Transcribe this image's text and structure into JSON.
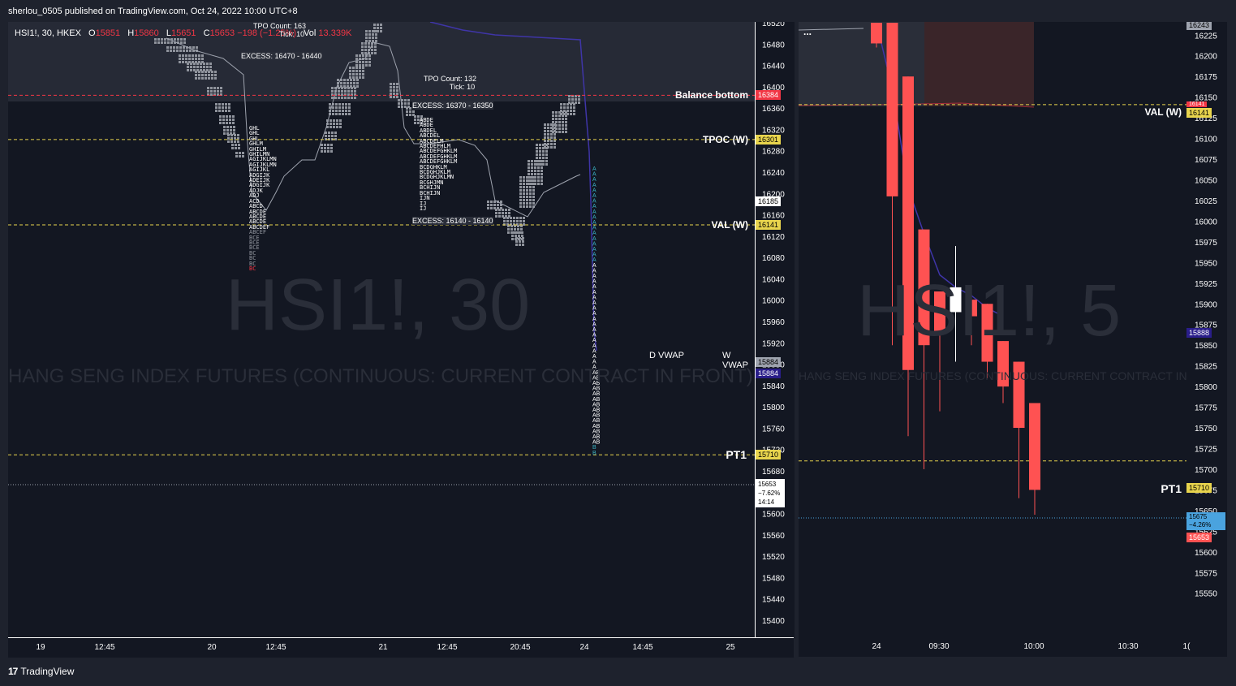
{
  "header": {
    "publish_line": "sherlou_0505 published on TradingView.com, Oct 24, 2022 10:00 UTC+8"
  },
  "branding": {
    "logo_text": "TradingView"
  },
  "colors": {
    "bg": "#131722",
    "up": "#ffffff",
    "down": "#ff5252",
    "vwap": "#3d2f9e",
    "dashed_yellow": "#e8d44d",
    "dashed_red": "#f23645",
    "accent_blue": "#2a1e8a"
  },
  "left_pane": {
    "symbol_line": "HSI1!, 30, HKEX",
    "ohlc": {
      "o_label": "O",
      "o": "15851",
      "h_label": "H",
      "h": "15860",
      "l_label": "L",
      "l": "15651",
      "c_label": "C",
      "c": "15653",
      "change": "−198 (−1.25%)",
      "vol_label": "Vol",
      "vol": "13.339K"
    },
    "watermark": "HSI1!, 30",
    "watermark_sub": "HANG SENG INDEX FUTURES (CONTINUOUS: CURRENT CONTRACT IN FRONT)",
    "tpo_info": [
      {
        "count": "TPO Count: 163",
        "tick": "Tick: 10"
      },
      {
        "count": "TPO Count: 132",
        "tick": "Tick: 10"
      }
    ],
    "excess_labels": [
      "EXCESS: 16470 - 16440",
      "EXCESS: 16370 - 16350",
      "EXCESS: 16140 - 16140"
    ],
    "level_labels": [
      {
        "name": "Balance bottom",
        "value": 16384,
        "tag": "16384"
      },
      {
        "name": "TPOC (W)",
        "value": 16301,
        "tag": "16301"
      },
      {
        "name": "VAL (W)",
        "value": 16141,
        "tag": "16141"
      },
      {
        "name": "PT1",
        "value": 15710,
        "tag": "15710"
      }
    ],
    "vwap_labels": {
      "d": "D VWAP",
      "w": "W VWAP"
    },
    "price_tags": {
      "p16185": "16185",
      "p15884a": "15884",
      "p15884b": "15884",
      "last": "15653",
      "last_change": "−7.62%",
      "countdown": "14:14"
    },
    "yaxis_ticks": [
      "16520",
      "16480",
      "16440",
      "16400",
      "16360",
      "16320",
      "16280",
      "16240",
      "16200",
      "16160",
      "16120",
      "16080",
      "16040",
      "16000",
      "15960",
      "15920",
      "15880",
      "15840",
      "15800",
      "15760",
      "15720",
      "15680",
      "15640",
      "15600",
      "15560",
      "15520",
      "15480",
      "15440",
      "15400"
    ],
    "xaxis_ticks": [
      "19",
      "12:45",
      "20",
      "12:45",
      "21",
      "12:45",
      "20:45",
      "24",
      "14:45",
      "25"
    ],
    "tpo_letters_sample": [
      "GHL",
      "GHL",
      "GHL",
      "GHLM",
      "GHILM",
      "GHILMN",
      "AGIJKLMN",
      "AGIJKLMN",
      "AGIJKL",
      "ADGIJK",
      "ADEIJK",
      "ADGIJK",
      "ADJK",
      "ADJ",
      "ACD",
      "ABCD",
      "ABCDE",
      "ABCDE",
      "ABCDE",
      "ABCDEF",
      "ABCEF",
      "BCE",
      "BCE",
      "BCE",
      "BC",
      "BC",
      "BC",
      "BC"
    ],
    "tpo_letters_sample2": [
      "ABDE",
      "ABDE",
      "ABDEL",
      "ABCDEL",
      "ABCDELM",
      "ABCDEFHLM",
      "ABCDEFGHKLM",
      "ABCDEFGHKLM",
      "ABCDEFGHKLM",
      "BCDGHKLM",
      "BCDGHJKLM",
      "BCDGHJKLMN",
      "BCGHJMN",
      "BCHIJN",
      "BCHIJN",
      "IJN",
      "IJ",
      "IJ"
    ]
  },
  "right_pane": {
    "watermark": "HSI1!, 5",
    "watermark_sub": "HANG SENG INDEX FUTURES (CONTINUOUS: CURRENT CONTRACT IN FRONT)",
    "ellipsis": "...",
    "level_labels": [
      {
        "name": "VAL (W)",
        "value": 16141,
        "tag": "16141"
      },
      {
        "name": "PT1",
        "value": 15710,
        "tag": "15710"
      }
    ],
    "price_tags": {
      "top": "16243",
      "vwap": "15888",
      "last_a": "15675",
      "last_change": "−4.26%",
      "last_b": "15653",
      "val_small": "16141"
    },
    "yaxis_ticks": [
      "16225",
      "16200",
      "16175",
      "16150",
      "16125",
      "16100",
      "16075",
      "16050",
      "16025",
      "16000",
      "15975",
      "15950",
      "15925",
      "15900",
      "15875",
      "15850",
      "15825",
      "15800",
      "15775",
      "15750",
      "15725",
      "15700",
      "15675",
      "15650",
      "15625",
      "15600",
      "15575",
      "15550"
    ],
    "xaxis_ticks": [
      "24",
      "09:30",
      "10:00",
      "10:30",
      "1("
    ]
  },
  "chart_data": [
    {
      "type": "candlestick",
      "title": "HSI1!, 5",
      "interval": "5",
      "ylim": [
        15535,
        16240
      ],
      "candles": [
        {
          "o": 16240,
          "h": 16240,
          "l": 16210,
          "c": 16215
        },
        {
          "o": 16240,
          "h": 16240,
          "l": 15850,
          "c": 16030
        },
        {
          "o": 16175,
          "h": 16175,
          "l": 15740,
          "c": 15820
        },
        {
          "o": 15990,
          "h": 15990,
          "l": 15700,
          "c": 15850
        },
        {
          "o": 15915,
          "h": 15915,
          "l": 15770,
          "c": 15865
        },
        {
          "o": 15890,
          "h": 15970,
          "l": 15830,
          "c": 15920
        },
        {
          "o": 15905,
          "h": 15915,
          "l": 15850,
          "c": 15885
        },
        {
          "o": 15900,
          "h": 15900,
          "l": 15810,
          "c": 15830
        },
        {
          "o": 15855,
          "h": 15855,
          "l": 15780,
          "c": 15800
        },
        {
          "o": 15830,
          "h": 15830,
          "l": 15665,
          "c": 15750
        },
        {
          "o": 15780,
          "h": 15780,
          "l": 15645,
          "c": 15675
        }
      ],
      "vwap": [
        16240,
        16160,
        16040,
        15985,
        15935,
        15920,
        15910,
        15895,
        15885
      ]
    }
  ]
}
